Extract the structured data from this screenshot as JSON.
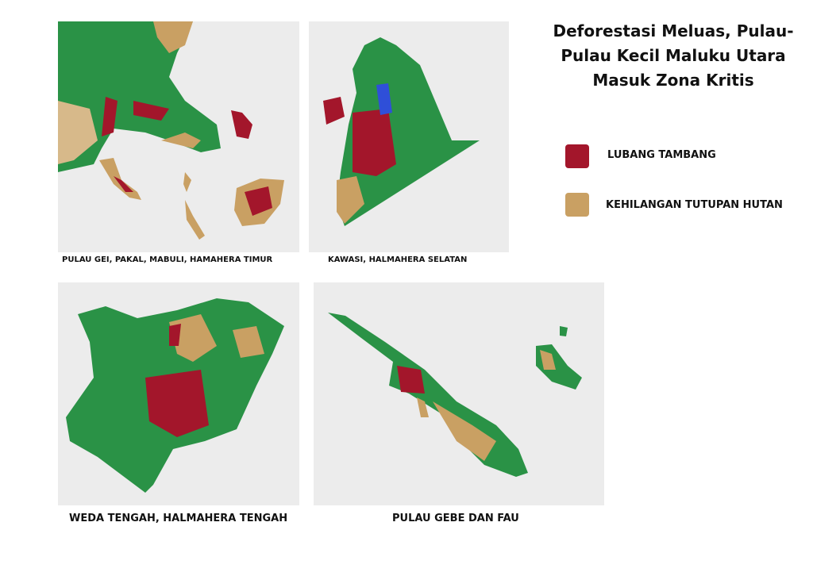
{
  "title": [
    "Deforestasi Meluas, Pulau-",
    "Pulau Kecil Maluku Utara",
    "Masuk Zona Kritis"
  ],
  "legend": [
    {
      "label": "LUBANG TAMBANG"
    },
    {
      "label": "KEHILANGAN TUTUPAN HUTAN"
    }
  ],
  "maps": [
    {
      "caption": "PULAU GEI, PAKAL, MABULI, HAMAHERA TIMUR"
    },
    {
      "caption": "KAWASI, HALMAHERA SELATAN"
    },
    {
      "caption": "WEDA TENGAH, HALMAHERA TENGAH"
    },
    {
      "caption": "PULAU GEBE DAN FAU"
    }
  ]
}
